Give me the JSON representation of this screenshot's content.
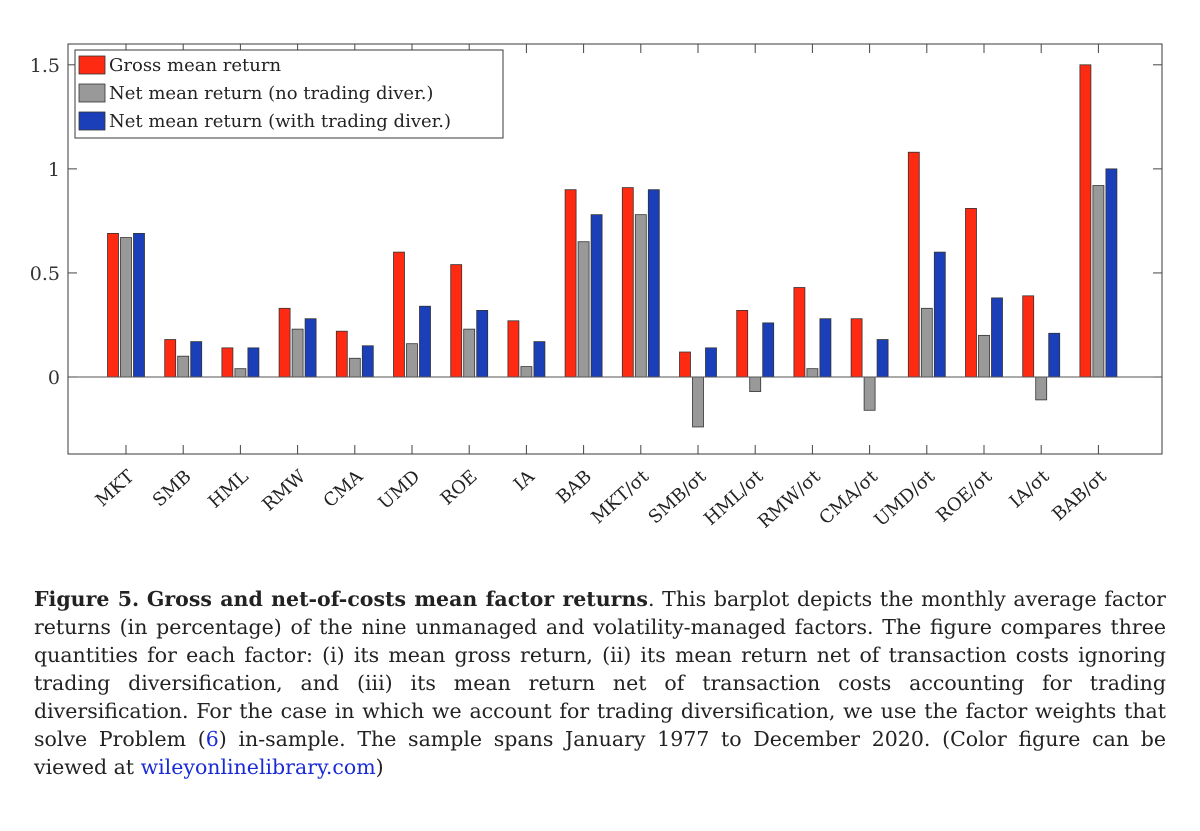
{
  "chart_data": {
    "type": "bar",
    "categories": [
      "MKT",
      "SMB",
      "HML",
      "RMW",
      "CMA",
      "UMD",
      "ROE",
      "IA",
      "BAB",
      "MKT/σt",
      "SMB/σt",
      "HML/σt",
      "RMW/σt",
      "CMA/σt",
      "UMD/σt",
      "ROE/σt",
      "IA/σt",
      "BAB/σt"
    ],
    "series": [
      {
        "name": "Gross mean return",
        "color": "#ff2a12",
        "values": [
          0.69,
          0.18,
          0.14,
          0.33,
          0.22,
          0.6,
          0.54,
          0.27,
          0.9,
          0.91,
          0.12,
          0.32,
          0.43,
          0.28,
          1.08,
          0.81,
          0.39,
          1.5
        ]
      },
      {
        "name": "Net mean return (no trading diver.)",
        "color": "#999999",
        "values": [
          0.67,
          0.1,
          0.04,
          0.23,
          0.09,
          0.16,
          0.23,
          0.05,
          0.65,
          0.78,
          -0.24,
          -0.07,
          0.04,
          -0.16,
          0.33,
          0.2,
          -0.11,
          0.92
        ]
      },
      {
        "name": "Net mean return (with trading diver.)",
        "color": "#1b3fb8",
        "values": [
          0.69,
          0.17,
          0.14,
          0.28,
          0.15,
          0.34,
          0.32,
          0.17,
          0.78,
          0.9,
          0.14,
          0.26,
          0.28,
          0.18,
          0.6,
          0.38,
          0.21,
          1.0
        ]
      }
    ],
    "yticks": [
      0,
      0.5,
      1,
      1.5
    ],
    "ytick_labels": [
      "0",
      "0.5",
      "1",
      "1.5"
    ],
    "ylim": [
      -0.37,
      1.6
    ],
    "xlabel": "",
    "ylabel": "",
    "legend_position": "top-left",
    "grid": false
  },
  "caption": {
    "figure_label": "Figure 5.",
    "title": "Gross and net-of-costs mean factor returns",
    "body_1": ". This barplot depicts the monthly average factor returns (in percentage) of the nine unmanaged and volatility-managed factors. The figure compares three quantities for each factor: (i) its mean gross return, (ii) its mean return net of transaction costs ignoring trading diversification, and (iii) its mean return net of transaction costs accounting for trading diversification. For the case in which we account for trading diversification, we use the factor weights that solve Problem (",
    "problem_ref": "6",
    "body_2": ") in-sample. The sample spans January 1977 to December 2020. (Color figure can be viewed at ",
    "link_text": "wileyonlinelibrary.com",
    "body_3": ")"
  }
}
